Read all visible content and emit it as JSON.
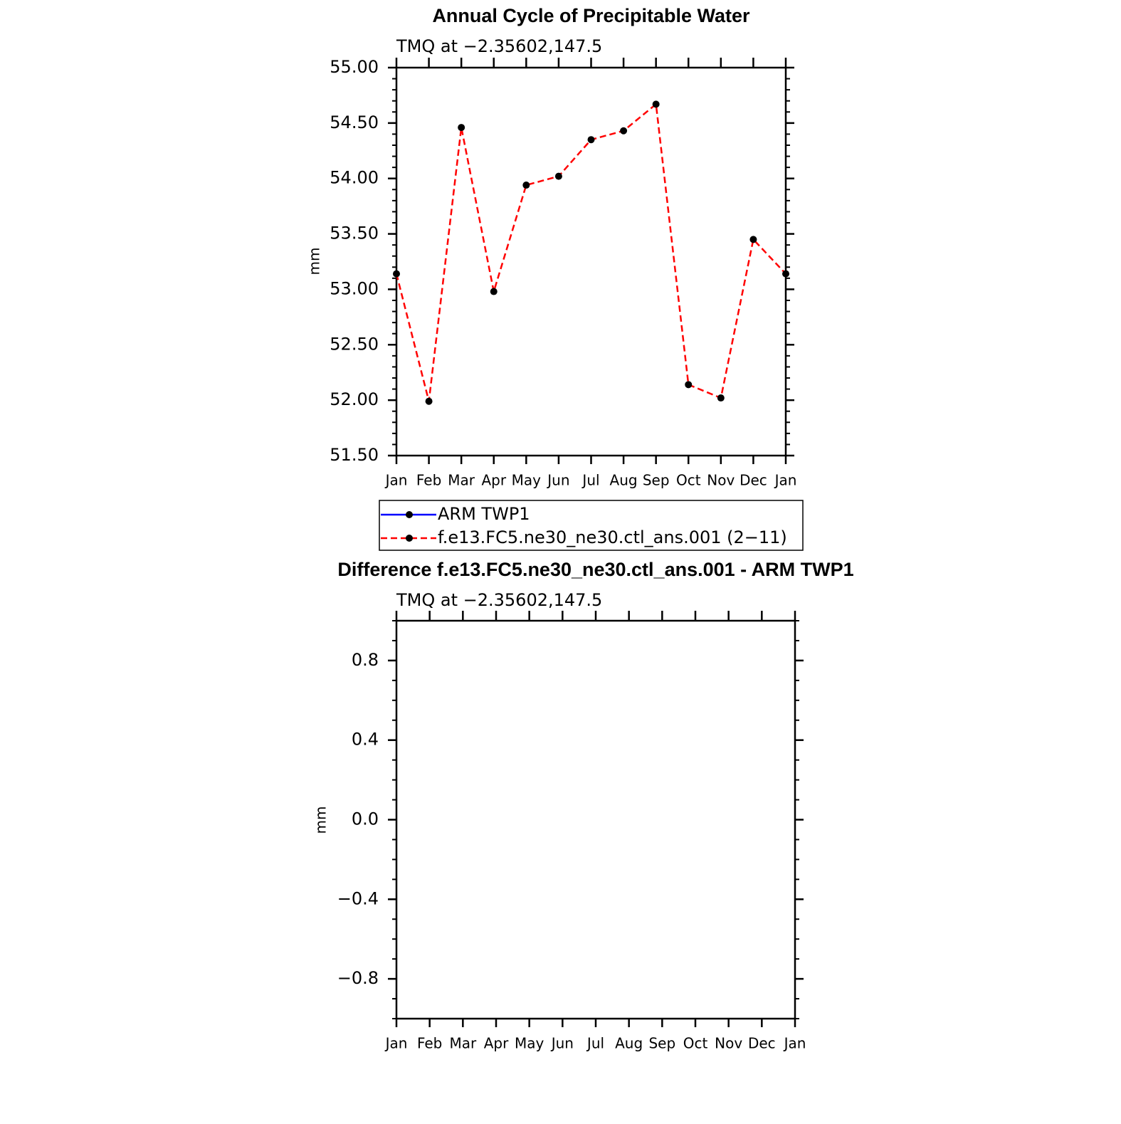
{
  "chart_data": [
    {
      "type": "line",
      "title": "Annual Cycle of Precipitable Water",
      "subtitle": "TMQ at −2.35602,147.5",
      "ylabel": "mm",
      "categories": [
        "Jan",
        "Feb",
        "Mar",
        "Apr",
        "May",
        "Jun",
        "Jul",
        "Aug",
        "Sep",
        "Oct",
        "Nov",
        "Dec",
        "Jan"
      ],
      "series": [
        {
          "name": "ARM TWP1",
          "color": "#0000ff",
          "line_style": "solid",
          "values": [
            null,
            null,
            null,
            null,
            null,
            null,
            null,
            null,
            null,
            null,
            null,
            null,
            null
          ]
        },
        {
          "name": "f.e13.FC5.ne30_ne30.ctl_ans.001 (2−11)",
          "color": "#ff0000",
          "line_style": "dashed",
          "values": [
            53.14,
            51.99,
            54.46,
            52.98,
            53.94,
            54.02,
            54.35,
            54.43,
            54.67,
            52.14,
            52.02,
            53.45,
            53.14
          ]
        }
      ],
      "marker_color": "#000000",
      "ylim": [
        51.5,
        55
      ],
      "yticks": [
        {
          "value": 51.5,
          "label": "51.50"
        },
        {
          "value": 52,
          "label": "52.00"
        },
        {
          "value": 52.5,
          "label": "52.50"
        },
        {
          "value": 53,
          "label": "53.00"
        },
        {
          "value": 53.5,
          "label": "53.50"
        },
        {
          "value": 54,
          "label": "54.00"
        },
        {
          "value": 54.5,
          "label": "54.50"
        },
        {
          "value": 55,
          "label": "55.00"
        }
      ],
      "legend": "bottom"
    },
    {
      "type": "line",
      "title": "Difference f.e13.FC5.ne30_ne30.ctl_ans.001 - ARM TWP1",
      "subtitle": "TMQ at −2.35602,147.5",
      "ylabel": "mm",
      "categories": [
        "Jan",
        "Feb",
        "Mar",
        "Apr",
        "May",
        "Jun",
        "Jul",
        "Aug",
        "Sep",
        "Oct",
        "Nov",
        "Dec",
        "Jan"
      ],
      "series": [],
      "ylim": [
        -1,
        1
      ],
      "yticks": [
        {
          "value": -0.8,
          "label": "−0.8"
        },
        {
          "value": -0.4,
          "label": "−0.4"
        },
        {
          "value": 0,
          "label": "0.0"
        },
        0.4,
        0.8
      ]
    }
  ]
}
